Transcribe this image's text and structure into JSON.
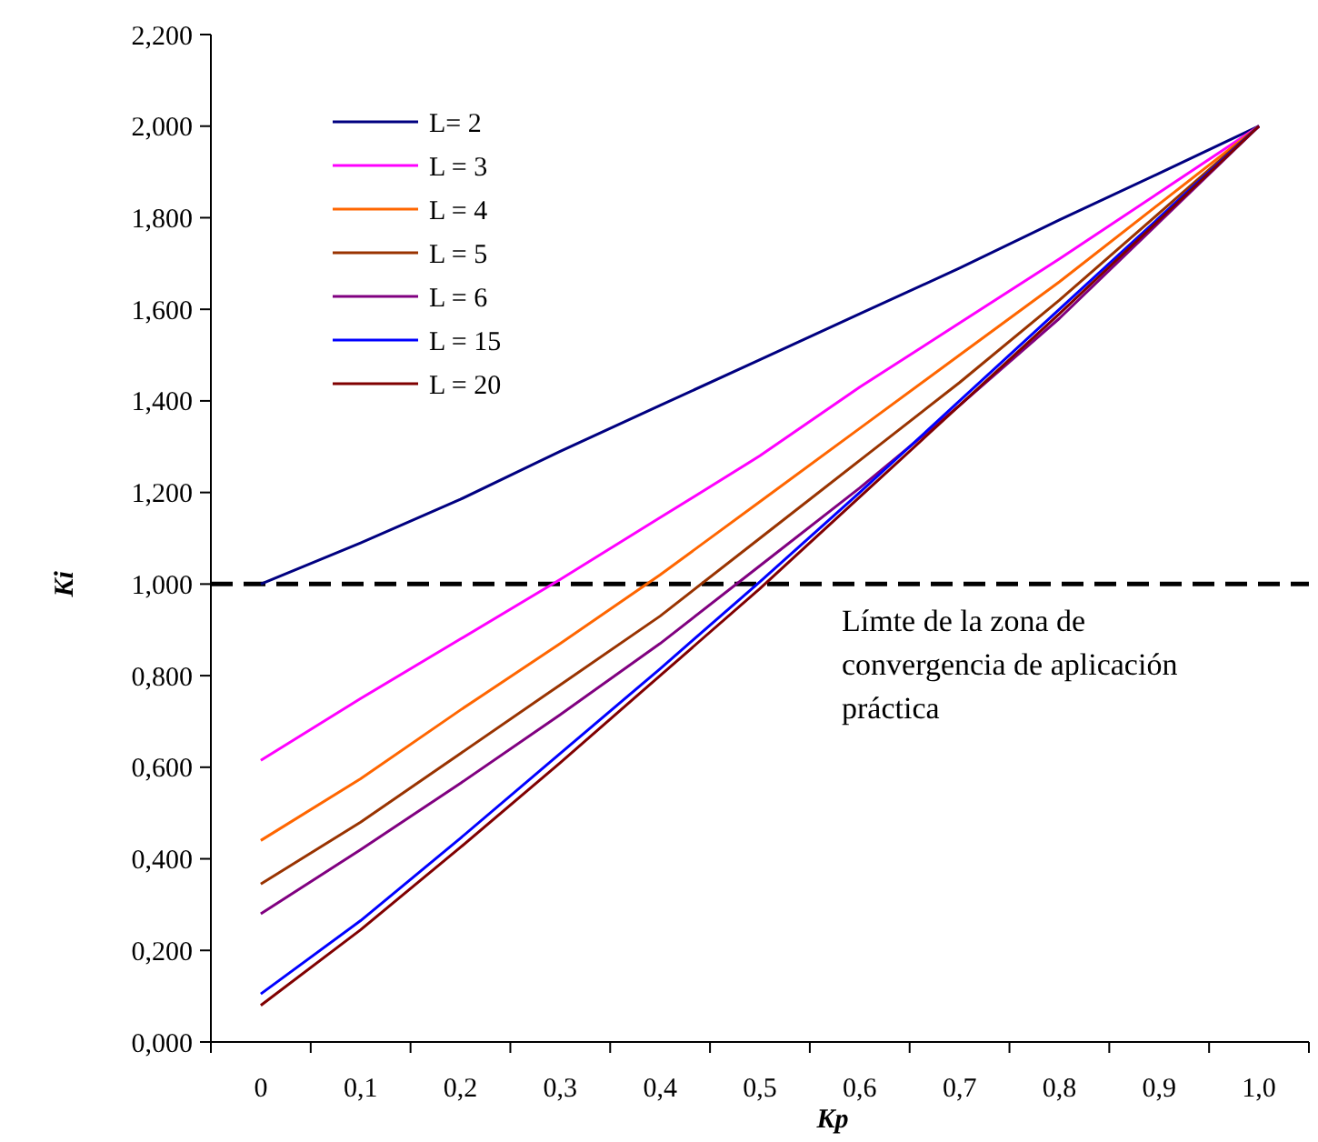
{
  "chart_data": {
    "type": "line",
    "xlabel": "Kp",
    "ylabel": "Ki",
    "categories": [
      "0",
      "0,1",
      "0,2",
      "0,3",
      "0,4",
      "0,5",
      "0,6",
      "0,7",
      "0,8",
      "0,9",
      "1,0"
    ],
    "ylim": [
      0,
      2.2
    ],
    "yticks": [
      {
        "value": 0,
        "label": "0,000"
      },
      {
        "value": 0.2,
        "label": "0,200"
      },
      {
        "value": 0.4,
        "label": "0,400"
      },
      {
        "value": 0.6,
        "label": "0,600"
      },
      {
        "value": 0.8,
        "label": "0,800"
      },
      {
        "value": 1,
        "label": "1,000"
      },
      {
        "value": 1.2,
        "label": "1,200"
      },
      {
        "value": 1.4,
        "label": "1,400"
      },
      {
        "value": 1.6,
        "label": "1,600"
      },
      {
        "value": 1.8,
        "label": "1,800"
      },
      {
        "value": 2,
        "label": "2,000"
      },
      {
        "value": 2.2,
        "label": "2,200"
      }
    ],
    "grid": false,
    "legend": "top left",
    "marker": "none",
    "line_style": "solid",
    "series": [
      {
        "name": "L= 2",
        "color": "#000080",
        "values": [
          1.0,
          1.09,
          1.185,
          1.29,
          1.39,
          1.49,
          1.59,
          1.69,
          1.795,
          1.897,
          2.0
        ]
      },
      {
        "name": "L = 3",
        "color": "#ff00ff",
        "values": [
          0.615,
          0.75,
          0.88,
          1.01,
          1.145,
          1.28,
          1.43,
          1.57,
          1.71,
          1.855,
          2.0
        ]
      },
      {
        "name": "L = 4",
        "color": "#ff6600",
        "values": [
          0.44,
          0.575,
          0.725,
          0.87,
          1.02,
          1.18,
          1.34,
          1.5,
          1.66,
          1.83,
          2.0
        ]
      },
      {
        "name": "L = 5",
        "color": "#993300",
        "values": [
          0.345,
          0.48,
          0.63,
          0.78,
          0.93,
          1.1,
          1.27,
          1.44,
          1.62,
          1.81,
          2.0
        ]
      },
      {
        "name": "L = 6",
        "color": "#800080",
        "values": [
          0.28,
          0.42,
          0.565,
          0.715,
          0.87,
          1.04,
          1.21,
          1.39,
          1.58,
          1.79,
          2.0
        ]
      },
      {
        "name": "L = 15",
        "color": "#0000ff",
        "values": [
          0.105,
          0.265,
          0.445,
          0.63,
          0.815,
          1.005,
          1.2,
          1.4,
          1.6,
          1.8,
          2.0
        ]
      },
      {
        "name": "L = 20",
        "color": "#800000",
        "values": [
          0.08,
          0.245,
          0.425,
          0.61,
          0.8,
          0.99,
          1.19,
          1.39,
          1.59,
          1.795,
          2.0
        ]
      }
    ],
    "ref_lines": [
      {
        "axis": "y",
        "value": 1,
        "label": "Límte de la zona de convergencia de aplicación práctica",
        "color": "#000000",
        "line_style": "dashed"
      }
    ]
  }
}
